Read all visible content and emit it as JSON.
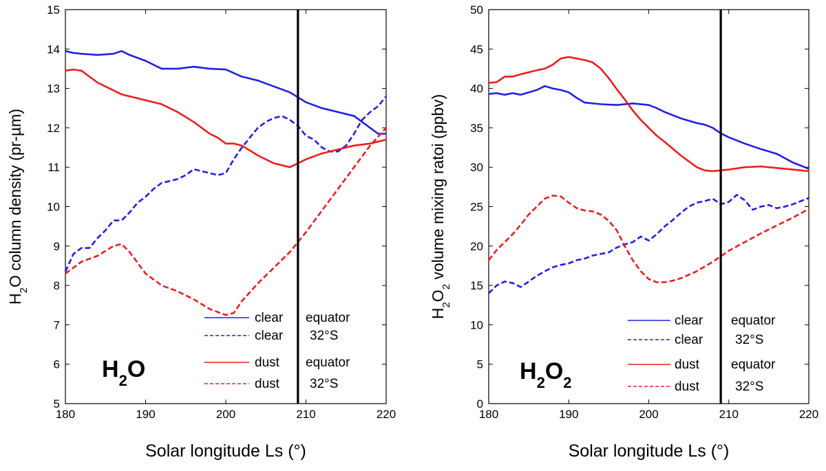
{
  "chart_data": [
    {
      "type": "line",
      "xlabel": "Solar longitude Ls (°)",
      "ylabel_parts": [
        "H",
        "2",
        "O column density (pr-µm)"
      ],
      "watermark_parts": [
        "H",
        "2",
        "O"
      ],
      "xlim": [
        180,
        220
      ],
      "ylim": [
        5,
        15
      ],
      "xticks": [
        "180",
        "190",
        "200",
        "210",
        "220"
      ],
      "yticks": [
        "5",
        "6",
        "7",
        "8",
        "9",
        "10",
        "11",
        "12",
        "13",
        "14",
        "15"
      ],
      "vline": 209,
      "series": [
        {
          "name": "clear",
          "location": "equator",
          "color": "#1f1fe6",
          "dash": "solid",
          "x": [
            180,
            181,
            182,
            184,
            186,
            187,
            188,
            190,
            192,
            194,
            196,
            198,
            200,
            202,
            204,
            206,
            208,
            210,
            212,
            214,
            216,
            218,
            219,
            220
          ],
          "y": [
            13.95,
            13.9,
            13.88,
            13.85,
            13.88,
            13.95,
            13.85,
            13.7,
            13.5,
            13.5,
            13.55,
            13.5,
            13.48,
            13.3,
            13.2,
            13.05,
            12.9,
            12.65,
            12.5,
            12.4,
            12.3,
            12.0,
            11.85,
            11.85
          ]
        },
        {
          "name": "clear",
          "location": "32°S",
          "color": "#1f1fe6",
          "dash": "dashed",
          "x": [
            180,
            181,
            182,
            183,
            184,
            185,
            186,
            187,
            188,
            189,
            190,
            191,
            192,
            193,
            194,
            195,
            196,
            197,
            198,
            199,
            200,
            201,
            202,
            203,
            204,
            205,
            206,
            207,
            208,
            209,
            210,
            211,
            212,
            213,
            214,
            215,
            216,
            217,
            218,
            219,
            220
          ],
          "y": [
            8.35,
            8.8,
            8.95,
            8.95,
            9.2,
            9.4,
            9.65,
            9.65,
            9.85,
            10.1,
            10.25,
            10.45,
            10.6,
            10.65,
            10.7,
            10.8,
            10.95,
            10.9,
            10.85,
            10.8,
            10.85,
            11.2,
            11.5,
            11.75,
            12.0,
            12.15,
            12.25,
            12.3,
            12.2,
            12.05,
            11.8,
            11.7,
            11.5,
            11.4,
            11.4,
            11.55,
            11.85,
            12.2,
            12.4,
            12.55,
            12.8
          ]
        },
        {
          "name": "dust",
          "location": "equator",
          "color": "#ee1c1c",
          "dash": "solid",
          "x": [
            180,
            181,
            182,
            184,
            186,
            187,
            188,
            190,
            192,
            194,
            196,
            198,
            199,
            200,
            201,
            202,
            204,
            206,
            208,
            209,
            210,
            212,
            214,
            216,
            218,
            220
          ],
          "y": [
            13.45,
            13.48,
            13.45,
            13.15,
            12.95,
            12.85,
            12.8,
            12.7,
            12.6,
            12.4,
            12.15,
            11.85,
            11.75,
            11.6,
            11.6,
            11.55,
            11.3,
            11.1,
            11.0,
            11.1,
            11.2,
            11.35,
            11.45,
            11.55,
            11.6,
            11.7
          ]
        },
        {
          "name": "dust",
          "location": "32°S",
          "color": "#ee1c1c",
          "dash": "dashed",
          "x": [
            180,
            182,
            184,
            186,
            187,
            188,
            190,
            192,
            194,
            196,
            198,
            200,
            201,
            202,
            204,
            206,
            208,
            210,
            212,
            214,
            216,
            218,
            220
          ],
          "y": [
            8.3,
            8.6,
            8.75,
            9.0,
            9.05,
            8.85,
            8.3,
            8.0,
            7.85,
            7.65,
            7.4,
            7.25,
            7.3,
            7.6,
            8.05,
            8.45,
            8.85,
            9.35,
            9.9,
            10.45,
            11.0,
            11.55,
            12.0
          ]
        }
      ]
    },
    {
      "type": "line",
      "xlabel": "Solar longitude Ls (°)",
      "ylabel_parts": [
        "H",
        "2",
        "O",
        "2",
        "  volume mixing ratoi (ppbv)"
      ],
      "watermark_parts": [
        "H",
        "2",
        "O",
        "2"
      ],
      "xlim": [
        180,
        220
      ],
      "ylim": [
        0,
        50
      ],
      "xticks": [
        "180",
        "190",
        "200",
        "210",
        "220"
      ],
      "yticks": [
        "0",
        "5",
        "10",
        "15",
        "20",
        "25",
        "30",
        "35",
        "40",
        "45",
        "50"
      ],
      "vline": 209,
      "series": [
        {
          "name": "clear",
          "location": "equator",
          "color": "#1f1fe6",
          "dash": "solid",
          "x": [
            180,
            181,
            182,
            183,
            184,
            186,
            187,
            188,
            189,
            190,
            191,
            192,
            194,
            196,
            198,
            200,
            201,
            202,
            204,
            206,
            207,
            208,
            209,
            210,
            212,
            214,
            216,
            218,
            220
          ],
          "y": [
            39.3,
            39.4,
            39.2,
            39.4,
            39.2,
            39.8,
            40.3,
            40.0,
            39.8,
            39.5,
            38.8,
            38.2,
            38.0,
            37.9,
            38.1,
            37.9,
            37.5,
            37.0,
            36.2,
            35.6,
            35.4,
            35.0,
            34.3,
            33.8,
            33.0,
            32.3,
            31.7,
            30.6,
            29.8
          ]
        },
        {
          "name": "clear",
          "location": "32°S",
          "color": "#1f1fe6",
          "dash": "dashed",
          "x": [
            180,
            181,
            182,
            183,
            184,
            185,
            186,
            187,
            188,
            189,
            190,
            191,
            192,
            193,
            194,
            195,
            196,
            197,
            198,
            199,
            200,
            201,
            202,
            203,
            204,
            205,
            206,
            207,
            208,
            209,
            210,
            211,
            212,
            213,
            214,
            215,
            216,
            217,
            218,
            219,
            220
          ],
          "y": [
            14.0,
            15.0,
            15.5,
            15.3,
            14.8,
            15.5,
            16.2,
            16.8,
            17.3,
            17.6,
            17.8,
            18.2,
            18.4,
            18.8,
            19.0,
            19.2,
            19.8,
            20.2,
            20.5,
            21.2,
            20.7,
            21.5,
            22.5,
            23.3,
            24.2,
            25.0,
            25.5,
            25.7,
            26.0,
            25.3,
            25.6,
            26.5,
            25.8,
            24.6,
            25.0,
            25.2,
            24.8,
            25.0,
            25.3,
            25.7,
            26.1
          ]
        },
        {
          "name": "dust",
          "location": "equator",
          "color": "#ee1c1c",
          "dash": "solid",
          "x": [
            180,
            181,
            182,
            183,
            184,
            186,
            187,
            188,
            189,
            190,
            191,
            192,
            193,
            194,
            195,
            196,
            197,
            198,
            199,
            200,
            201,
            202,
            204,
            206,
            207,
            208,
            209,
            210,
            212,
            214,
            216,
            218,
            220
          ],
          "y": [
            40.7,
            40.8,
            41.5,
            41.5,
            41.8,
            42.3,
            42.5,
            43.0,
            43.8,
            44.0,
            43.8,
            43.6,
            43.3,
            42.5,
            41.3,
            39.9,
            38.6,
            37.2,
            36.0,
            35.0,
            34.0,
            33.2,
            31.5,
            30.0,
            29.6,
            29.5,
            29.6,
            29.7,
            30.0,
            30.1,
            29.9,
            29.7,
            29.5
          ]
        },
        {
          "name": "dust",
          "location": "32°S",
          "color": "#ee1c1c",
          "dash": "dashed",
          "x": [
            180,
            181,
            182,
            183,
            184,
            185,
            186,
            187,
            188,
            189,
            190,
            191,
            192,
            193,
            194,
            195,
            196,
            197,
            198,
            199,
            200,
            201,
            202,
            203,
            204,
            206,
            208,
            210,
            212,
            214,
            216,
            218,
            220
          ],
          "y": [
            18.2,
            19.5,
            20.5,
            21.5,
            22.7,
            24.0,
            25.0,
            26.0,
            26.4,
            26.3,
            25.5,
            24.8,
            24.5,
            24.4,
            24.0,
            23.2,
            22.0,
            20.0,
            18.2,
            16.8,
            15.8,
            15.4,
            15.4,
            15.6,
            15.9,
            16.8,
            18.0,
            19.4,
            20.5,
            21.6,
            22.6,
            23.6,
            24.7
          ]
        }
      ]
    }
  ]
}
